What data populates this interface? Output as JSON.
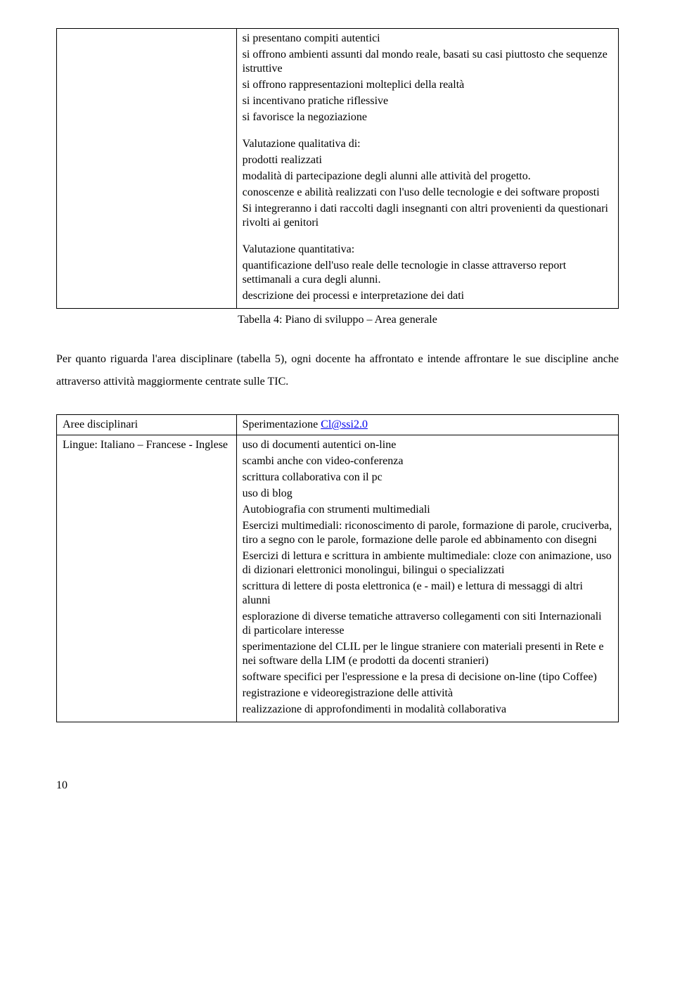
{
  "table1": {
    "left": "",
    "rightLines": [
      "si presentano compiti autentici",
      "si offrono ambienti assunti dal mondo reale, basati su casi piuttosto che sequenze istruttive",
      "si offrono rappresentazioni molteplici della realtà",
      "si incentivano pratiche riflessive",
      "si favorisce la negoziazione"
    ],
    "valQualTitle": "Valutazione qualitativa di:",
    "valQualLines": [
      "prodotti realizzati",
      "modalità di partecipazione degli alunni alle attività del progetto.",
      "conoscenze e abilità realizzati con l'uso delle tecnologie e dei software proposti",
      "Si integreranno i dati raccolti dagli insegnanti con altri provenienti da questionari rivolti ai genitori"
    ],
    "valQuantTitle": "Valutazione quantitativa:",
    "valQuantLines": [
      "quantificazione dell'uso reale delle tecnologie in classe attraverso report settimanali a cura degli alunni.",
      "descrizione dei processi e interpretazione dei dati"
    ]
  },
  "caption1": "Tabella 4: Piano di sviluppo – Area generale",
  "bodyText": "Per quanto riguarda l'area disciplinare (tabella 5), ogni docente ha affrontato e intende affrontare le sue discipline anche attraverso attività maggiormente centrate sulle TIC.",
  "table2": {
    "headerLeft": "Aree disciplinari",
    "headerRightPrefix": "Sperimentazione ",
    "headerRightLink": "Cl@ssi2.0",
    "row1Left": "Lingue: Italiano – Francese - Inglese",
    "row1RightLines": [
      "uso di documenti autentici on-line",
      "scambi anche con video-conferenza",
      "scrittura collaborativa con il pc",
      "uso di blog",
      "Autobiografia con strumenti multimediali",
      "Esercizi multimediali: riconoscimento di parole, formazione di parole, cruciverba, tiro a segno con le parole, formazione delle parole ed abbinamento con disegni",
      "Esercizi di lettura e scrittura in ambiente multimediale: cloze con animazione, uso di dizionari elettronici monolingui, bilingui o specializzati",
      "scrittura di lettere di posta elettronica (e - mail) e lettura di messaggi di altri alunni",
      "esplorazione di diverse tematiche attraverso collegamenti con siti Internazionali di particolare interesse",
      "sperimentazione del CLIL per le lingue straniere con materiali presenti in Rete e nei software della LIM (e prodotti da docenti stranieri)",
      "software specifici per l'espressione e la presa di decisione on-line (tipo Coffee)",
      "registrazione e videoregistrazione delle attività",
      "realizzazione di approfondimenti in modalità collaborativa"
    ]
  },
  "pageNumber": "10"
}
